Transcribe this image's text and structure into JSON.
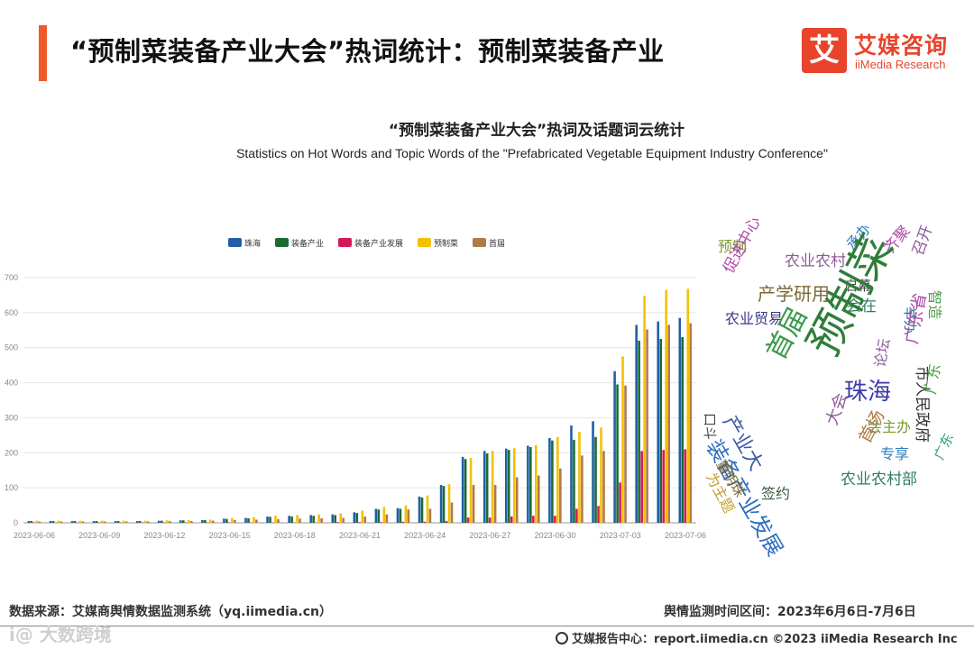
{
  "header": {
    "title": "“预制菜装备产业大会”热词统计：预制菜装备产业",
    "accent_color": "#f05a28"
  },
  "logo": {
    "mark": "艾",
    "name_cn": "艾媒咨询",
    "name_en": "iiMedia Research",
    "color": "#e8442b"
  },
  "chart_data": {
    "type": "bar",
    "title": "“预制菜装备产业大会”热词及话题词云统计",
    "subtitle": "Statistics on Hot Words and Topic Words of the \"Prefabricated Vegetable Equipment Industry Conference\"",
    "ylim": [
      0,
      700
    ],
    "yticks": [
      0,
      100,
      200,
      300,
      400,
      500,
      600,
      700
    ],
    "grid": true,
    "legend_position": "top-center",
    "categories": [
      "2023-06-06",
      "2023-06-07",
      "2023-06-08",
      "2023-06-09",
      "2023-06-10",
      "2023-06-11",
      "2023-06-12",
      "2023-06-13",
      "2023-06-14",
      "2023-06-15",
      "2023-06-16",
      "2023-06-17",
      "2023-06-18",
      "2023-06-19",
      "2023-06-20",
      "2023-06-21",
      "2023-06-22",
      "2023-06-23",
      "2023-06-24",
      "2023-06-25",
      "2023-06-26",
      "2023-06-27",
      "2023-06-28",
      "2023-06-29",
      "2023-06-30",
      "2023-07-01",
      "2023-07-02",
      "2023-07-03",
      "2023-07-04",
      "2023-07-05",
      "2023-07-06"
    ],
    "xtick_labels": [
      "2023-06-06",
      "2023-06-09",
      "2023-06-12",
      "2023-06-15",
      "2023-06-18",
      "2023-06-21",
      "2023-06-24",
      "2023-06-27",
      "2023-06-30",
      "2023-07-03",
      "2023-07-06"
    ],
    "series": [
      {
        "name": "珠海",
        "color": "#1f5fa8",
        "values": [
          5,
          5,
          5,
          5,
          5,
          5,
          6,
          7,
          8,
          12,
          14,
          18,
          20,
          22,
          24,
          30,
          40,
          42,
          75,
          108,
          188,
          205,
          212,
          220,
          242,
          278,
          290,
          433,
          565,
          575,
          585
        ]
      },
      {
        "name": "装备产业",
        "color": "#1a6b32",
        "values": [
          5,
          5,
          5,
          5,
          5,
          5,
          6,
          7,
          8,
          11,
          13,
          17,
          18,
          20,
          22,
          28,
          38,
          40,
          72,
          105,
          182,
          198,
          208,
          216,
          235,
          237,
          245,
          395,
          520,
          525,
          530
        ]
      },
      {
        "name": "装备产业发展",
        "color": "#d6195a",
        "values": [
          1,
          1,
          1,
          1,
          1,
          1,
          1,
          1,
          1,
          1,
          1,
          1,
          1,
          1,
          2,
          2,
          2,
          3,
          3,
          5,
          15,
          15,
          18,
          20,
          20,
          40,
          48,
          115,
          205,
          208,
          210
        ]
      },
      {
        "name": "预制菜",
        "color": "#f5c000",
        "values": [
          6,
          6,
          6,
          6,
          6,
          6,
          7,
          8,
          9,
          14,
          16,
          20,
          22,
          24,
          27,
          35,
          45,
          50,
          78,
          110,
          185,
          205,
          213,
          222,
          245,
          260,
          272,
          475,
          648,
          665,
          668
        ]
      },
      {
        "name": "首届",
        "color": "#b07a48",
        "values": [
          4,
          4,
          4,
          4,
          4,
          4,
          5,
          5,
          6,
          8,
          9,
          10,
          12,
          13,
          14,
          18,
          24,
          38,
          40,
          58,
          108,
          108,
          130,
          135,
          155,
          192,
          205,
          392,
          552,
          565,
          570
        ]
      }
    ]
  },
  "word_cloud": {
    "words": [
      {
        "text": "预制",
        "color": "#7a9a2a"
      },
      {
        "text": "促进中心",
        "color": "#b04aa8"
      },
      {
        "text": "农业农村",
        "color": "#8e5a9c"
      },
      {
        "text": "承办",
        "color": "#2e7ec0"
      },
      {
        "text": "齐聚",
        "color": "#b04aa8"
      },
      {
        "text": "召开",
        "color": "#8e5a9c"
      },
      {
        "text": "产学研用",
        "color": "#7a6a30"
      },
      {
        "text": "启幕",
        "color": "#444444"
      },
      {
        "text": "智造",
        "color": "#4a9c4a"
      },
      {
        "text": "农业贸易",
        "color": "#3a3a8a"
      },
      {
        "text": "会在",
        "color": "#2e7e5a"
      },
      {
        "text": "举办",
        "color": "#2e6e9c"
      },
      {
        "text": "首届",
        "color": "#3a9a4a"
      },
      {
        "text": "预制菜",
        "color": "#2e7e3a"
      },
      {
        "text": "产业大",
        "color": "#3a5aa8"
      },
      {
        "text": "广东省",
        "color": "#b04aa8"
      },
      {
        "text": "市人民政府",
        "color": "#333333"
      },
      {
        "text": "论坛",
        "color": "#8e5a9c"
      },
      {
        "text": "装备产业发展",
        "color": "#2e6ec0"
      },
      {
        "text": "珠海",
        "color": "#3a3aa8"
      },
      {
        "text": "广东",
        "color": "#4a9c4a"
      },
      {
        "text": "口斗",
        "color": "#444444"
      },
      {
        "text": "会主办",
        "color": "#7a9a2a"
      },
      {
        "text": "董明珠",
        "color": "#7a6a30"
      },
      {
        "text": "大会",
        "color": "#8e5a9c"
      },
      {
        "text": "首场",
        "color": "#b07a48"
      },
      {
        "text": "专享",
        "color": "#2e7ec0"
      },
      {
        "text": "为主题",
        "color": "#c0a030"
      },
      {
        "text": "农业农村部",
        "color": "#2e7e5a"
      },
      {
        "text": "签约",
        "color": "#3a5a3a"
      },
      {
        "text": "广东",
        "color": "#2e9e7e"
      }
    ]
  },
  "footer": {
    "source": "数据来源：艾媒商舆情数据监测系统（yq.iimedia.cn）",
    "period": "舆情监测时间区间：2023年6月6日-7月6日",
    "report_center": "艾媒报告中心：report.iimedia.cn  ©2023  iiMedia Research  Inc",
    "watermark": "i@ 大数跨境"
  }
}
